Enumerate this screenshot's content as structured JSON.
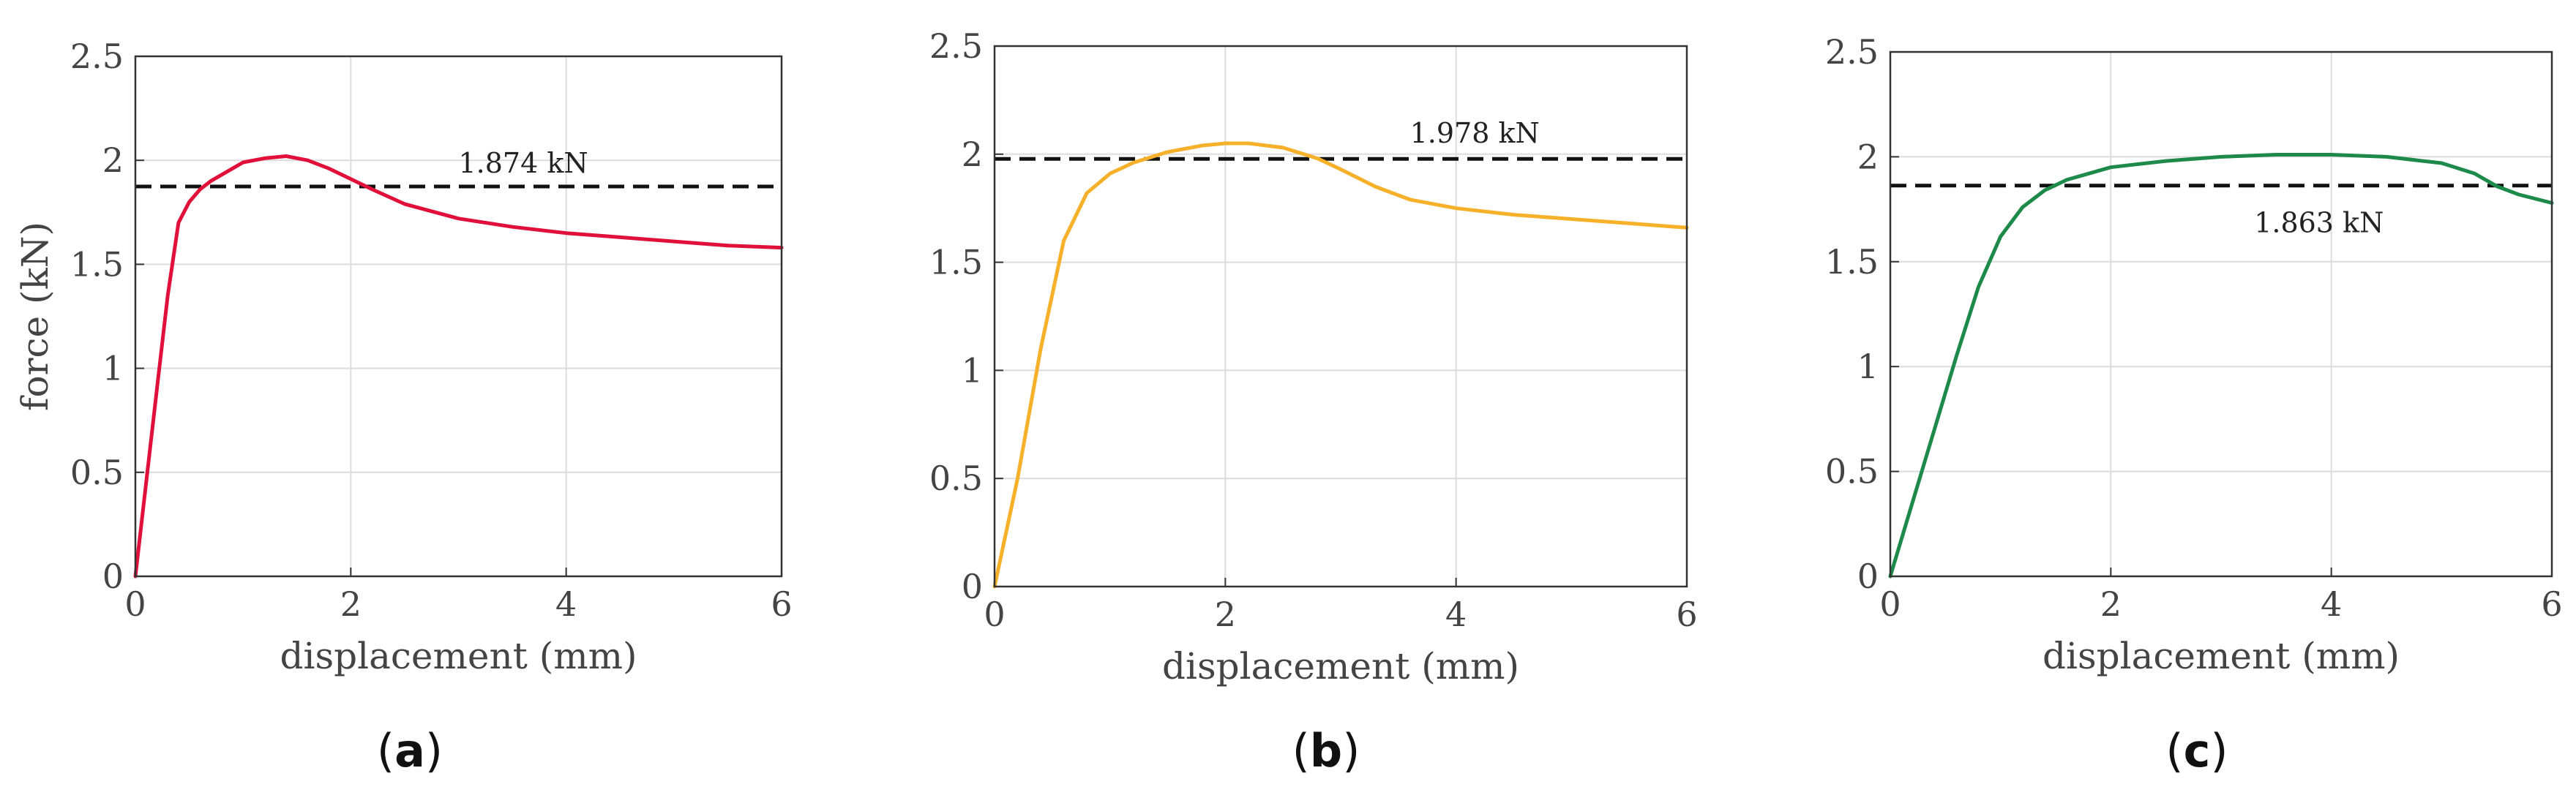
{
  "chart_data": [
    {
      "type": "line",
      "panel_label": "a",
      "xlabel": "displacement (mm)",
      "ylabel": "force (kN)",
      "xlim": [
        0,
        6
      ],
      "ylim": [
        0,
        2.5
      ],
      "xticks": [
        "0",
        "2",
        "4",
        "6"
      ],
      "yticks": [
        "0",
        "0.5",
        "1",
        "1.5",
        "2",
        "2.5"
      ],
      "grid": true,
      "series": [
        {
          "color": "#e0103a",
          "x": [
            0,
            0.1,
            0.2,
            0.3,
            0.4,
            0.5,
            0.6,
            0.7,
            0.8,
            0.9,
            1.0,
            1.2,
            1.4,
            1.6,
            1.8,
            2.0,
            2.2,
            2.5,
            3.0,
            3.5,
            4.0,
            4.5,
            5.0,
            5.5,
            6.0
          ],
          "y": [
            0,
            0.45,
            0.9,
            1.35,
            1.7,
            1.8,
            1.86,
            1.9,
            1.93,
            1.96,
            1.99,
            2.01,
            2.02,
            2.0,
            1.96,
            1.91,
            1.86,
            1.79,
            1.72,
            1.68,
            1.65,
            1.63,
            1.61,
            1.59,
            1.58
          ]
        }
      ],
      "reference_line": {
        "y": 1.874,
        "label": "1.874 kN",
        "label_x": 3.0,
        "label_y": 1.99
      }
    },
    {
      "type": "line",
      "panel_label": "b",
      "xlabel": "displacement (mm)",
      "ylabel": "",
      "xlim": [
        0,
        6
      ],
      "ylim": [
        0,
        2.5
      ],
      "xticks": [
        "0",
        "2",
        "4",
        "6"
      ],
      "yticks": [
        "0",
        "0.5",
        "1",
        "1.5",
        "2",
        "2.5"
      ],
      "grid": true,
      "series": [
        {
          "color": "#f7b02a",
          "x": [
            0,
            0.2,
            0.4,
            0.6,
            0.8,
            1.0,
            1.2,
            1.5,
            1.8,
            2.0,
            2.2,
            2.5,
            2.8,
            3.0,
            3.3,
            3.6,
            4.0,
            4.5,
            5.0,
            5.5,
            6.0
          ],
          "y": [
            0,
            0.5,
            1.1,
            1.6,
            1.82,
            1.91,
            1.96,
            2.01,
            2.04,
            2.05,
            2.05,
            2.03,
            1.98,
            1.93,
            1.85,
            1.79,
            1.75,
            1.72,
            1.7,
            1.68,
            1.66
          ]
        }
      ],
      "reference_line": {
        "y": 1.978,
        "label": "1.978 kN",
        "label_x": 3.6,
        "label_y": 2.1
      }
    },
    {
      "type": "line",
      "panel_label": "c",
      "xlabel": "displacement (mm)",
      "ylabel": "",
      "xlim": [
        0,
        6
      ],
      "ylim": [
        0,
        2.5
      ],
      "xticks": [
        "0",
        "2",
        "4",
        "6"
      ],
      "yticks": [
        "0",
        "0.5",
        "1",
        "1.5",
        "2",
        "2.5"
      ],
      "grid": true,
      "series": [
        {
          "color": "#1e8a4a",
          "x": [
            0,
            0.2,
            0.4,
            0.6,
            0.8,
            1.0,
            1.2,
            1.4,
            1.6,
            1.8,
            2.0,
            2.5,
            3.0,
            3.5,
            4.0,
            4.5,
            5.0,
            5.3,
            5.5,
            5.7,
            6.0
          ],
          "y": [
            0,
            0.35,
            0.7,
            1.05,
            1.38,
            1.62,
            1.76,
            1.84,
            1.89,
            1.92,
            1.95,
            1.98,
            2.0,
            2.01,
            2.01,
            2.0,
            1.97,
            1.92,
            1.86,
            1.82,
            1.78
          ]
        }
      ],
      "reference_line": {
        "y": 1.863,
        "label": "1.863 kN",
        "label_x": 3.3,
        "label_y": 1.69
      }
    }
  ]
}
